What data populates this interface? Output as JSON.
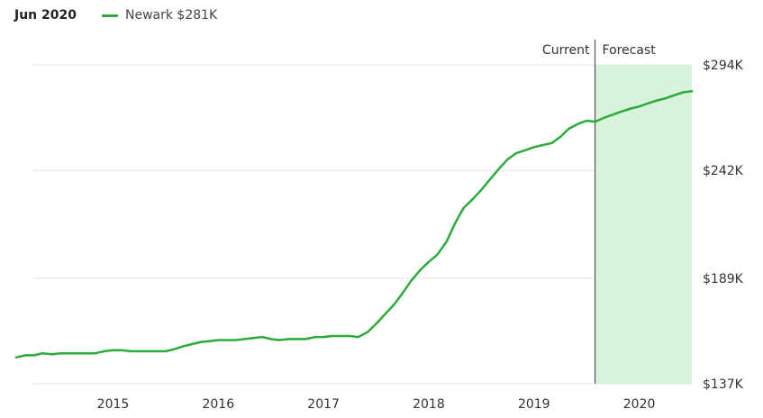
{
  "header": {
    "period_label": "Jun 2020",
    "legend_label": "Newark $281K"
  },
  "colors": {
    "series_line": "#2aab3a",
    "forecast_fill": "#d8f2dc",
    "gridline": "#e6e6e6",
    "divider": "#555555"
  },
  "chart_data": {
    "type": "line",
    "title": "",
    "xlabel": "",
    "ylabel": "",
    "ylim": [
      137,
      294
    ],
    "y_unit": "$K",
    "y_ticks": [
      {
        "value": 294,
        "label": "$294K"
      },
      {
        "value": 242,
        "label": "$242K"
      },
      {
        "value": 189,
        "label": "$189K"
      },
      {
        "value": 137,
        "label": "$137K"
      }
    ],
    "x_range": [
      2014.08,
      2020.5
    ],
    "x_ticks": [
      {
        "value": 2015,
        "label": "2015"
      },
      {
        "value": 2016,
        "label": "2016"
      },
      {
        "value": 2017,
        "label": "2017"
      },
      {
        "value": 2018,
        "label": "2018"
      },
      {
        "value": 2019,
        "label": "2019"
      },
      {
        "value": 2020,
        "label": "2020"
      }
    ],
    "grid": true,
    "legend_position": "top-left",
    "current_marker": {
      "x": 2019.58,
      "label": "Current"
    },
    "forecast_region": {
      "x_start": 2019.58,
      "x_end": 2020.5,
      "label": "Forecast"
    },
    "series": [
      {
        "name": "Newark",
        "x": [
          2014.08,
          2014.17,
          2014.25,
          2014.33,
          2014.42,
          2014.5,
          2014.58,
          2014.67,
          2014.75,
          2014.83,
          2014.92,
          2015.0,
          2015.08,
          2015.17,
          2015.25,
          2015.33,
          2015.42,
          2015.5,
          2015.58,
          2015.67,
          2015.75,
          2015.83,
          2015.92,
          2016.0,
          2016.08,
          2016.17,
          2016.25,
          2016.33,
          2016.42,
          2016.5,
          2016.58,
          2016.67,
          2016.75,
          2016.83,
          2016.92,
          2017.0,
          2017.08,
          2017.17,
          2017.25,
          2017.33,
          2017.42,
          2017.5,
          2017.58,
          2017.67,
          2017.75,
          2017.83,
          2017.92,
          2018.0,
          2018.08,
          2018.17,
          2018.25,
          2018.33,
          2018.42,
          2018.5,
          2018.58,
          2018.67,
          2018.75,
          2018.83,
          2018.92,
          2019.0,
          2019.08,
          2019.17,
          2019.25,
          2019.33,
          2019.42,
          2019.5,
          2019.58,
          2019.67,
          2019.75,
          2019.83,
          2019.92,
          2020.0,
          2020.08,
          2020.17,
          2020.25,
          2020.33,
          2020.42,
          2020.5
        ],
        "values": [
          150,
          151,
          151,
          152,
          151.5,
          152,
          152,
          152,
          152,
          152,
          153,
          153.5,
          153.5,
          153,
          153,
          153,
          153,
          153,
          154,
          155.5,
          156.5,
          157.5,
          158,
          158.5,
          158.5,
          158.5,
          159,
          159.5,
          160,
          159,
          158.5,
          159,
          159,
          159,
          160,
          160,
          160.5,
          160.5,
          160.5,
          160,
          162.5,
          166.5,
          171,
          176,
          181.5,
          187.5,
          193,
          197,
          200.5,
          207,
          216,
          223.5,
          228,
          232.5,
          237.5,
          243,
          247.5,
          250.5,
          252,
          253.5,
          254.5,
          255.5,
          258.5,
          262.5,
          265,
          266.5,
          266,
          268,
          269.5,
          271,
          272.5,
          273.5,
          275,
          276.5,
          277.5,
          279,
          280.5,
          281
        ]
      }
    ]
  }
}
